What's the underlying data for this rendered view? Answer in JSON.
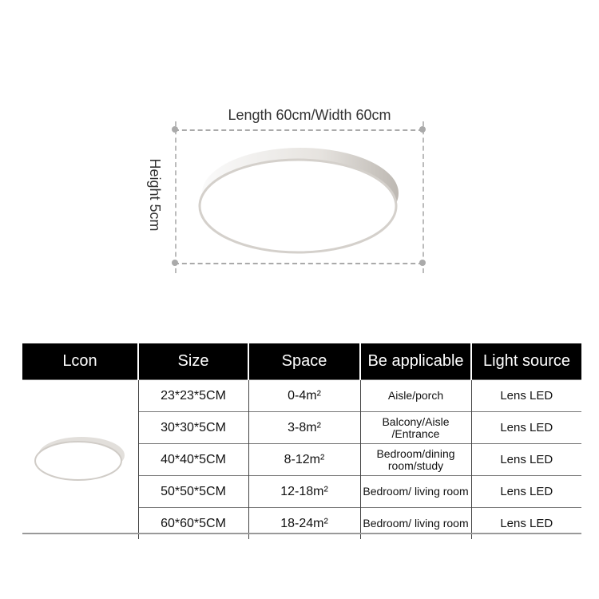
{
  "dimensions": {
    "length_width": "Length 60cm/Width 60cm",
    "height": "Height 5cm"
  },
  "table": {
    "headers": [
      "Lcon",
      "Size",
      "Space",
      "Be applicable",
      "Light source"
    ],
    "rows": [
      {
        "size": "23*23*5CM",
        "space": "0-4m²",
        "applicable": "Aisle/porch",
        "light": "Lens LED"
      },
      {
        "size": "30*30*5CM",
        "space": "3-8m²",
        "applicable": "Balcony/Aisle /Entrance",
        "light": "Lens LED"
      },
      {
        "size": "40*40*5CM",
        "space": "8-12m²",
        "applicable": "Bedroom/dining room/study",
        "light": "Lens LED"
      },
      {
        "size": "50*50*5CM",
        "space": "12-18m²",
        "applicable": "Bedroom/ living room",
        "light": "Lens LED"
      },
      {
        "size": "60*60*5CM",
        "space": "18-24m²",
        "applicable": "Bedroom/ living room",
        "light": "Lens LED"
      }
    ]
  }
}
